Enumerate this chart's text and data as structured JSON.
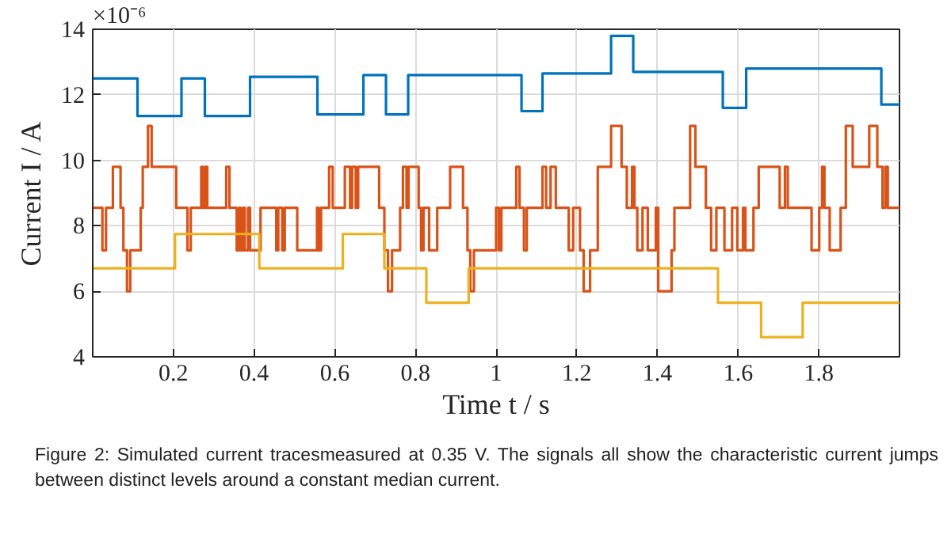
{
  "chart_data": {
    "type": "step",
    "xlabel": "Time t / s",
    "ylabel": "Current I / A",
    "xlim": [
      0,
      2
    ],
    "xticks": [
      0.2,
      0.4,
      0.6,
      0.8,
      1,
      1.2,
      1.4,
      1.6,
      1.8
    ],
    "ylim": [
      4,
      14
    ],
    "yticks": [
      4,
      6,
      8,
      10,
      12,
      14
    ],
    "grid": true,
    "line_style": "solid",
    "annotations": [
      "×10⁻⁶",
      "Figure 2: Simulated current tracesmeasured at 0.35 V. The signals all show the characteristic current jumps between distinct levels around a constant median current."
    ],
    "series": [
      {
        "color": "#0072bd",
        "x": [
          0,
          0.111,
          0.22,
          0.278,
          0.39,
          0.557,
          0.671,
          0.727,
          0.782,
          1.063,
          1.115,
          1.285,
          1.34,
          1.562,
          1.62,
          1.955,
          2.0
        ],
        "values": [
          12.5,
          11.35,
          12.5,
          11.35,
          12.55,
          11.4,
          12.6,
          11.4,
          12.6,
          11.5,
          12.65,
          13.8,
          12.7,
          11.6,
          12.8,
          11.7,
          11.7
        ]
      },
      {
        "color": "#d95319",
        "x": [
          0,
          0.024,
          0.033,
          0.05,
          0.069,
          0.076,
          0.085,
          0.093,
          0.119,
          0.124,
          0.137,
          0.146,
          0.207,
          0.235,
          0.243,
          0.269,
          0.274,
          0.279,
          0.284,
          0.331,
          0.339,
          0.357,
          0.363,
          0.367,
          0.373,
          0.377,
          0.385,
          0.39,
          0.416,
          0.455,
          0.46,
          0.47,
          0.476,
          0.507,
          0.556,
          0.56,
          0.566,
          0.586,
          0.595,
          0.625,
          0.638,
          0.643,
          0.652,
          0.658,
          0.71,
          0.723,
          0.732,
          0.742,
          0.762,
          0.769,
          0.778,
          0.783,
          0.808,
          0.814,
          0.82,
          0.834,
          0.854,
          0.886,
          0.918,
          0.929,
          0.936,
          0.945,
          1.0,
          1.007,
          1.013,
          1.05,
          1.058,
          1.069,
          1.076,
          1.115,
          1.124,
          1.135,
          1.148,
          1.18,
          1.191,
          1.208,
          1.217,
          1.233,
          1.252,
          1.285,
          1.311,
          1.324,
          1.337,
          1.343,
          1.35,
          1.363,
          1.376,
          1.396,
          1.402,
          1.435,
          1.442,
          1.481,
          1.494,
          1.52,
          1.533,
          1.546,
          1.566,
          1.585,
          1.598,
          1.612,
          1.618,
          1.638,
          1.651,
          1.703,
          1.716,
          1.723,
          1.782,
          1.801,
          1.808,
          1.814,
          1.827,
          1.854,
          1.867,
          1.884,
          1.925,
          1.945,
          1.958,
          1.965,
          1.971,
          2.0
        ],
        "values": [
          8.55,
          7.25,
          8.55,
          9.8,
          8.55,
          7.25,
          6.0,
          7.25,
          8.55,
          9.8,
          11.05,
          9.8,
          8.55,
          7.25,
          8.55,
          9.8,
          8.55,
          9.8,
          8.55,
          9.8,
          8.55,
          7.25,
          8.55,
          7.25,
          8.55,
          7.25,
          8.55,
          7.25,
          8.55,
          7.25,
          8.55,
          7.25,
          8.55,
          7.25,
          8.55,
          7.25,
          8.55,
          9.8,
          8.55,
          9.8,
          8.55,
          9.8,
          8.55,
          9.8,
          8.55,
          7.25,
          6.0,
          7.25,
          8.55,
          9.8,
          8.55,
          9.8,
          8.55,
          7.25,
          8.55,
          7.25,
          8.55,
          9.8,
          8.55,
          7.25,
          6.0,
          7.25,
          8.55,
          7.25,
          8.55,
          9.8,
          8.55,
          7.25,
          8.55,
          9.8,
          8.55,
          9.8,
          8.55,
          7.25,
          8.55,
          7.25,
          6.0,
          7.25,
          9.8,
          11.05,
          9.8,
          8.55,
          9.8,
          8.55,
          7.25,
          8.55,
          7.25,
          8.55,
          6.0,
          7.25,
          8.55,
          11.05,
          9.8,
          8.55,
          7.25,
          8.55,
          7.25,
          8.55,
          7.25,
          8.55,
          7.25,
          8.55,
          9.8,
          8.55,
          9.8,
          8.55,
          7.25,
          8.55,
          9.8,
          8.55,
          7.25,
          8.55,
          11.05,
          9.8,
          11.05,
          9.8,
          8.55,
          9.8,
          8.55,
          8.55
        ]
      },
      {
        "color": "#edb120",
        "x": [
          0,
          0.204,
          0.413,
          0.62,
          0.723,
          0.827,
          0.932,
          1.55,
          1.657,
          1.76,
          2.0
        ],
        "values": [
          6.7,
          7.75,
          6.7,
          7.75,
          6.7,
          5.65,
          6.7,
          5.65,
          4.6,
          5.65,
          5.65
        ]
      }
    ]
  }
}
